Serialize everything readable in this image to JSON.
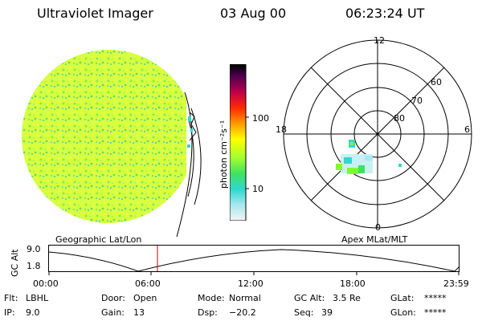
{
  "header": {
    "title": "Ultraviolet Imager",
    "date": "03 Aug 00",
    "time": "06:23:24 UT"
  },
  "colorbar": {
    "label": "photon cm⁻²s⁻¹",
    "ticks": [
      "100",
      "10"
    ]
  },
  "polar": {
    "mlt_labels": {
      "top": "12",
      "left": "18",
      "right": "6",
      "bottom": "0"
    },
    "lat_labels": [
      "60",
      "70",
      "80"
    ]
  },
  "panel_labels": {
    "geo": "Geographic Lat/Lon",
    "apex": "Apex MLat/MLT"
  },
  "alt_plot": {
    "ylabel": "GC Alt",
    "y_ticks": [
      "9.0",
      "1.8"
    ],
    "x_ticks": [
      "00:00",
      "06:00",
      "12:00",
      "18:00",
      "23:59"
    ],
    "current_time_marker": "06:23"
  },
  "footer": {
    "row1": [
      {
        "label": "Flt:",
        "value": "LBHL"
      },
      {
        "label": "Door:",
        "value": "Open"
      },
      {
        "label": "Mode:",
        "value": "Normal"
      },
      {
        "label": "GC Alt:",
        "value": "3.5 Re"
      },
      {
        "label": "GLat:",
        "value": "*****"
      }
    ],
    "row2": [
      {
        "label": "IP:",
        "value": "9.0"
      },
      {
        "label": "Gain:",
        "value": "13"
      },
      {
        "label": "Dsp:",
        "value": "−20.2"
      },
      {
        "label": "Seq:",
        "value": "39"
      },
      {
        "label": "GLon:",
        "value": "*****"
      }
    ]
  },
  "colors": {
    "disk_green": "#7fff2a",
    "disk_yellow": "#e8ff3a",
    "speck_cyan": "#30d8d0",
    "marker_red": "#c00000"
  }
}
